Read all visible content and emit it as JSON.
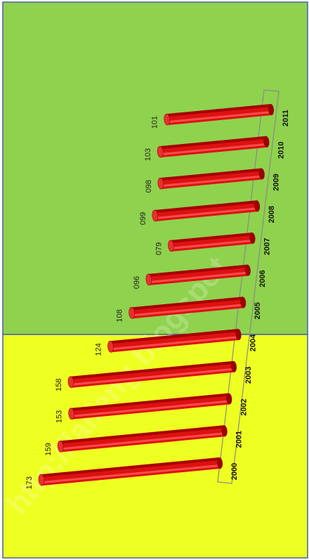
{
  "chart_data": {
    "type": "bar",
    "orientation": "vertical-rotated",
    "categories": [
      "2000",
      "2001",
      "2002",
      "2003",
      "2004",
      "2005",
      "2006",
      "2007",
      "2008",
      "2009",
      "2010",
      "2011"
    ],
    "values": [
      173,
      159,
      153,
      158,
      124,
      108,
      96,
      79,
      99,
      98,
      103,
      101
    ],
    "value_labels": [
      "173",
      "159",
      "153",
      "158",
      "124",
      "108",
      "096",
      "079",
      "099",
      "098",
      "103",
      "101"
    ],
    "title": "",
    "xlabel": "",
    "ylabel": "",
    "ylim": [
      0,
      180
    ],
    "grid": false,
    "legend": "none",
    "bar_style": "3d-cylinder",
    "background_bands": [
      {
        "range": [
          "2000",
          "2004"
        ],
        "color": "#eeff22"
      },
      {
        "range": [
          "2005",
          "2011"
        ],
        "color": "#8fd24e"
      }
    ],
    "colors": {
      "bar": "#dd1111",
      "bar_dark": "#9a0000",
      "bar_light": "#ff5a5a",
      "band_border": "#4a5fa8"
    },
    "watermark": "http://laifeng.blogspot"
  }
}
